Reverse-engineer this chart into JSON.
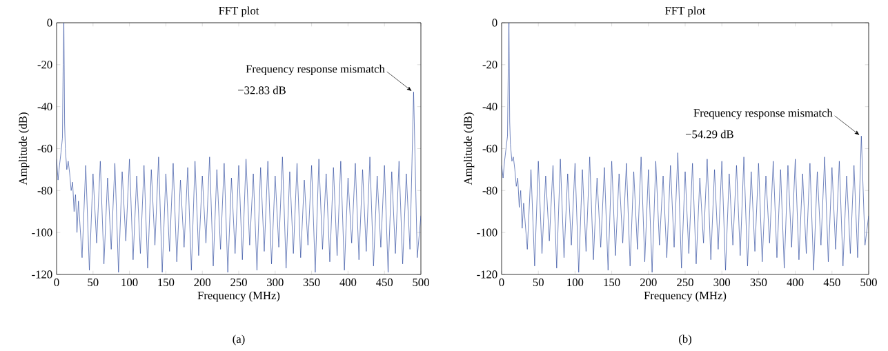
{
  "chart_data": [
    {
      "type": "line",
      "title": "FFT plot",
      "xlabel": "Frequency (MHz)",
      "ylabel": "Amplitude (dB)",
      "color": "#2e4a9e",
      "xlim": [
        0,
        500
      ],
      "ylim": [
        -120,
        0
      ],
      "xticks": [
        0,
        50,
        100,
        150,
        200,
        250,
        300,
        350,
        400,
        450,
        500
      ],
      "yticks": [
        -120,
        -100,
        -80,
        -60,
        -40,
        -20,
        0
      ],
      "x": [
        0,
        2,
        4,
        6,
        8,
        9,
        10,
        11,
        12,
        14,
        16,
        18,
        20,
        22,
        24,
        26,
        28,
        30,
        35,
        40,
        45,
        50,
        55,
        60,
        65,
        70,
        75,
        80,
        85,
        90,
        95,
        100,
        105,
        110,
        115,
        120,
        125,
        130,
        135,
        140,
        145,
        150,
        155,
        160,
        165,
        170,
        175,
        180,
        185,
        190,
        195,
        200,
        205,
        210,
        215,
        220,
        225,
        230,
        235,
        240,
        245,
        250,
        255,
        260,
        265,
        270,
        275,
        280,
        285,
        290,
        295,
        300,
        305,
        310,
        315,
        320,
        325,
        330,
        335,
        340,
        345,
        350,
        355,
        360,
        365,
        370,
        375,
        380,
        385,
        390,
        395,
        400,
        405,
        410,
        415,
        420,
        425,
        430,
        435,
        440,
        445,
        450,
        455,
        460,
        465,
        470,
        475,
        480,
        485,
        490,
        495,
        500
      ],
      "values": [
        -65,
        -75,
        -68,
        -62,
        -55,
        -20,
        0,
        -48,
        -60,
        -70,
        -66,
        -72,
        -80,
        -76,
        -90,
        -82,
        -100,
        -85,
        -112,
        -68,
        -118,
        -72,
        -105,
        -66,
        -115,
        -74,
        -108,
        -67,
        -119,
        -71,
        -104,
        -65,
        -113,
        -73,
        -110,
        -68,
        -117,
        -70,
        -106,
        -64,
        -119,
        -72,
        -109,
        -67,
        -114,
        -75,
        -107,
        -69,
        -118,
        -66,
        -111,
        -73,
        -105,
        -64,
        -116,
        -70,
        -108,
        -67,
        -119,
        -74,
        -110,
        -68,
        -113,
        -65,
        -106,
        -72,
        -118,
        -69,
        -109,
        -66,
        -115,
        -73,
        -107,
        -64,
        -117,
        -71,
        -110,
        -67,
        -112,
        -75,
        -106,
        -68,
        -119,
        -65,
        -108,
        -72,
        -114,
        -69,
        -111,
        -66,
        -118,
        -74,
        -105,
        -67,
        -113,
        -70,
        -109,
        -64,
        -116,
        -73,
        -107,
        -68,
        -119,
        -71,
        -110,
        -66,
        -115,
        -72,
        -108,
        -33,
        -112,
        -92
      ],
      "annotations": [
        {
          "text": "Frequency response mismatch",
          "x": 490,
          "y": -33
        },
        "−32.83 dB",
        "(a)"
      ]
    },
    {
      "type": "line",
      "title": "FFT plot",
      "xlabel": "Frequency (MHz)",
      "ylabel": "Amplitude (dB)",
      "color": "#2e4a9e",
      "xlim": [
        0,
        500
      ],
      "ylim": [
        -120,
        0
      ],
      "xticks": [
        0,
        50,
        100,
        150,
        200,
        250,
        300,
        350,
        400,
        450,
        500
      ],
      "yticks": [
        -120,
        -100,
        -80,
        -60,
        -40,
        -20,
        0
      ],
      "x": [
        0,
        2,
        4,
        6,
        8,
        9,
        10,
        11,
        12,
        14,
        16,
        18,
        20,
        22,
        24,
        26,
        28,
        30,
        35,
        40,
        45,
        50,
        55,
        60,
        65,
        70,
        75,
        80,
        85,
        90,
        95,
        100,
        105,
        110,
        115,
        120,
        125,
        130,
        135,
        140,
        145,
        150,
        155,
        160,
        165,
        170,
        175,
        180,
        185,
        190,
        195,
        200,
        205,
        210,
        215,
        220,
        225,
        230,
        235,
        240,
        245,
        250,
        255,
        260,
        265,
        270,
        275,
        280,
        285,
        290,
        295,
        300,
        305,
        310,
        315,
        320,
        325,
        330,
        335,
        340,
        345,
        350,
        355,
        360,
        365,
        370,
        375,
        380,
        385,
        390,
        395,
        400,
        405,
        410,
        415,
        420,
        425,
        430,
        435,
        440,
        445,
        450,
        455,
        460,
        465,
        470,
        475,
        480,
        485,
        490,
        495,
        500
      ],
      "values": [
        -68,
        -74,
        -66,
        -60,
        -54,
        -22,
        0,
        -47,
        -58,
        -66,
        -64,
        -70,
        -78,
        -74,
        -88,
        -80,
        -98,
        -86,
        -108,
        -70,
        -116,
        -66,
        -110,
        -73,
        -104,
        -68,
        -117,
        -65,
        -112,
        -72,
        -106,
        -67,
        -119,
        -70,
        -109,
        -64,
        -113,
        -74,
        -107,
        -69,
        -118,
        -66,
        -111,
        -72,
        -105,
        -67,
        -116,
        -71,
        -108,
        -64,
        -114,
        -70,
        -119,
        -66,
        -106,
        -73,
        -112,
        -68,
        -107,
        -62,
        -117,
        -71,
        -110,
        -67,
        -115,
        -74,
        -105,
        -65,
        -113,
        -70,
        -108,
        -66,
        -118,
        -72,
        -106,
        -68,
        -111,
        -64,
        -116,
        -71,
        -109,
        -67,
        -114,
        -73,
        -105,
        -66,
        -112,
        -70,
        -117,
        -68,
        -107,
        -65,
        -113,
        -72,
        -110,
        -67,
        -118,
        -71,
        -106,
        -64,
        -114,
        -69,
        -108,
        -66,
        -116,
        -73,
        -110,
        -68,
        -112,
        -54,
        -106,
        -92
      ],
      "annotations": [
        {
          "text": "Frequency response mismatch",
          "x": 490,
          "y": -54
        },
        "−54.29 dB",
        "(b)"
      ]
    }
  ]
}
